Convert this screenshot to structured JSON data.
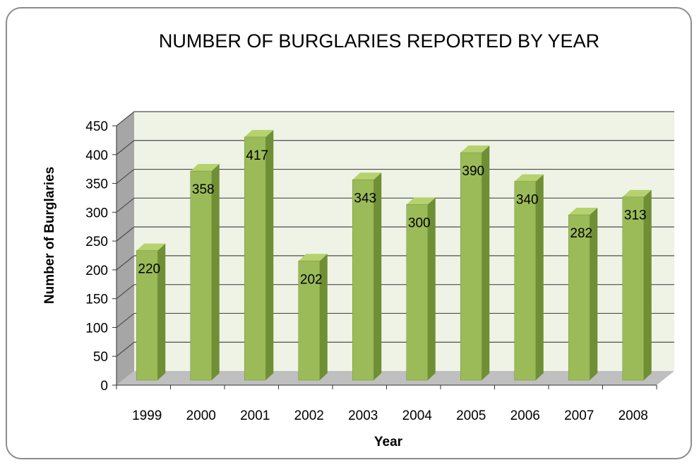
{
  "chart_data": {
    "type": "bar",
    "title": "NUMBER OF BURGLARIES REPORTED BY YEAR",
    "xlabel": "Year",
    "ylabel": "Number of Burglaries",
    "categories": [
      "1999",
      "2000",
      "2001",
      "2002",
      "2003",
      "2004",
      "2005",
      "2006",
      "2007",
      "2008"
    ],
    "values": [
      220,
      358,
      417,
      202,
      343,
      300,
      390,
      340,
      282,
      313
    ],
    "ylim": [
      0,
      450
    ],
    "yticks": [
      0,
      50,
      100,
      150,
      200,
      250,
      300,
      350,
      400,
      450
    ],
    "grid": true,
    "legend": "none",
    "colors": {
      "bar_front": "#9bbb59",
      "bar_side": "#6f8f34",
      "bar_top": "#b5d26f",
      "back_wall": "#eef3e6",
      "side_wall": "#a6a6a6",
      "floor": "#bfbfbf",
      "gridline": "#4d4d4d"
    }
  }
}
